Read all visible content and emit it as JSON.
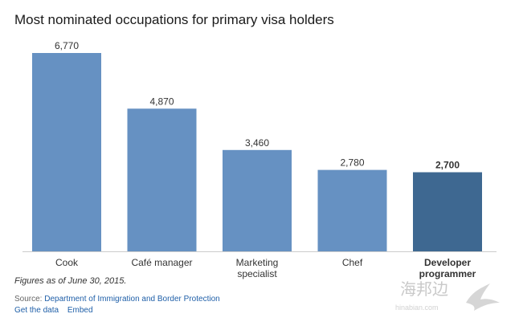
{
  "chart_data": {
    "type": "bar",
    "title": "Most nominated occupations for primary visa holders",
    "categories": [
      "Cook",
      "Café manager",
      "Marketing specialist",
      "Chef",
      "Developer programmer"
    ],
    "category_lines": [
      [
        "Cook"
      ],
      [
        "Café manager"
      ],
      [
        "Marketing",
        "specialist"
      ],
      [
        "Chef"
      ],
      [
        "Developer",
        "programmer"
      ]
    ],
    "values": [
      6770,
      4870,
      3460,
      2780,
      2700
    ],
    "value_labels": [
      "6,770",
      "4,870",
      "3,460",
      "2,780",
      "2,700"
    ],
    "highlight_index": 4,
    "ylim": [
      0,
      6770
    ],
    "grid": false,
    "colors": {
      "bar": "#6691c2",
      "highlight": "#3e6891",
      "axis": "#cccccc",
      "label": "#333333"
    }
  },
  "note": "Figures as of June 30, 2015.",
  "source": {
    "prefix": "Source: ",
    "name": "Department of Immigration and Border Protection"
  },
  "links": {
    "get_data": "Get the data",
    "embed": "Embed"
  },
  "watermark": {
    "text": "海邦边",
    "subtext": "hinabian.com"
  }
}
